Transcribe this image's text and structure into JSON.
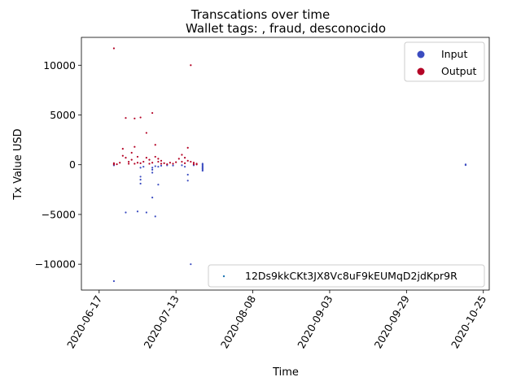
{
  "chart_data": {
    "type": "scatter",
    "title": "Transcations over time",
    "subtitle": "Wallet tags: , fraud, desconocido",
    "xlabel": "Time",
    "ylabel": "Tx Value USD",
    "x_range": [
      "2020-06-11",
      "2020-10-27"
    ],
    "ylim": [
      -12600,
      12800
    ],
    "x_ticks": [
      "2020-06-17",
      "2020-07-13",
      "2020-08-08",
      "2020-09-03",
      "2020-09-29",
      "2020-10-25"
    ],
    "y_ticks": [
      -10000,
      -5000,
      0,
      5000,
      10000
    ],
    "grid": false,
    "legends": [
      {
        "placement": "top-right",
        "entries": [
          {
            "label": "Input",
            "color": "#3b4cc0",
            "marker": "circle"
          },
          {
            "label": "Output",
            "color": "#b40426",
            "marker": "circle"
          }
        ]
      },
      {
        "placement": "lower-right",
        "entries": [
          {
            "label": "12Ds9kkCKt3JX8Vc8uF9kEUMqD2jdKpr9R",
            "color": "#1f77b4",
            "marker": "dot"
          }
        ]
      }
    ],
    "series": [
      {
        "name": "Input",
        "color": "#3b4cc0",
        "points": [
          [
            "2020-06-22",
            -11700
          ],
          [
            "2020-06-22",
            -60
          ],
          [
            "2020-06-22",
            -20
          ],
          [
            "2020-06-26",
            -4800
          ],
          [
            "2020-06-30",
            -4700
          ],
          [
            "2020-07-03",
            -4800
          ],
          [
            "2020-07-01",
            -1200
          ],
          [
            "2020-07-01",
            -1500
          ],
          [
            "2020-07-01",
            -1900
          ],
          [
            "2020-07-01",
            -300
          ],
          [
            "2020-07-02",
            -200
          ],
          [
            "2020-07-05",
            -3300
          ],
          [
            "2020-07-05",
            -800
          ],
          [
            "2020-07-05",
            -500
          ],
          [
            "2020-07-05",
            -300
          ],
          [
            "2020-07-06",
            -5200
          ],
          [
            "2020-07-06",
            -150
          ],
          [
            "2020-07-07",
            -2000
          ],
          [
            "2020-07-07",
            -200
          ],
          [
            "2020-07-08",
            -100
          ],
          [
            "2020-07-10",
            -60
          ],
          [
            "2020-07-12",
            -80
          ],
          [
            "2020-07-15",
            -50
          ],
          [
            "2020-07-16",
            -200
          ],
          [
            "2020-07-17",
            -1000
          ],
          [
            "2020-07-17",
            -1600
          ],
          [
            "2020-07-18",
            -10000
          ],
          [
            "2020-07-19",
            -50
          ],
          [
            "2020-07-22",
            0
          ],
          [
            "2020-07-22",
            -100
          ],
          [
            "2020-07-22",
            -200
          ],
          [
            "2020-07-22",
            -300
          ],
          [
            "2020-07-22",
            -400
          ],
          [
            "2020-07-22",
            -500
          ],
          [
            "2020-07-22",
            -600
          ],
          [
            "2020-07-22",
            100
          ],
          [
            "2020-10-19",
            0
          ],
          [
            "2020-10-19",
            -30
          ],
          [
            "2020-10-19",
            30
          ]
        ]
      },
      {
        "name": "Output",
        "color": "#b40426",
        "points": [
          [
            "2020-06-22",
            11700
          ],
          [
            "2020-06-22",
            80
          ],
          [
            "2020-06-22",
            30
          ],
          [
            "2020-06-22",
            150
          ],
          [
            "2020-06-23",
            50
          ],
          [
            "2020-06-24",
            200
          ],
          [
            "2020-06-25",
            1600
          ],
          [
            "2020-06-25",
            900
          ],
          [
            "2020-06-26",
            700
          ],
          [
            "2020-06-26",
            4700
          ],
          [
            "2020-06-27",
            300
          ],
          [
            "2020-06-27",
            100
          ],
          [
            "2020-06-28",
            1200
          ],
          [
            "2020-06-28",
            500
          ],
          [
            "2020-06-29",
            1800
          ],
          [
            "2020-06-29",
            4650
          ],
          [
            "2020-06-29",
            100
          ],
          [
            "2020-06-30",
            800
          ],
          [
            "2020-06-30",
            200
          ],
          [
            "2020-07-01",
            4750
          ],
          [
            "2020-07-01",
            150
          ],
          [
            "2020-07-02",
            300
          ],
          [
            "2020-07-03",
            3200
          ],
          [
            "2020-07-03",
            700
          ],
          [
            "2020-07-04",
            100
          ],
          [
            "2020-07-04",
            500
          ],
          [
            "2020-07-05",
            5200
          ],
          [
            "2020-07-05",
            200
          ],
          [
            "2020-07-06",
            2000
          ],
          [
            "2020-07-06",
            800
          ],
          [
            "2020-07-07",
            300
          ],
          [
            "2020-07-07",
            600
          ],
          [
            "2020-07-08",
            100
          ],
          [
            "2020-07-08",
            400
          ],
          [
            "2020-07-09",
            150
          ],
          [
            "2020-07-10",
            50
          ],
          [
            "2020-07-11",
            200
          ],
          [
            "2020-07-12",
            100
          ],
          [
            "2020-07-13",
            250
          ],
          [
            "2020-07-14",
            600
          ],
          [
            "2020-07-15",
            1000
          ],
          [
            "2020-07-15",
            300
          ],
          [
            "2020-07-16",
            700
          ],
          [
            "2020-07-16",
            150
          ],
          [
            "2020-07-17",
            1700
          ],
          [
            "2020-07-17",
            400
          ],
          [
            "2020-07-18",
            10000
          ],
          [
            "2020-07-18",
            300
          ],
          [
            "2020-07-19",
            200
          ],
          [
            "2020-07-19",
            50
          ],
          [
            "2020-07-20",
            100
          ],
          [
            "2020-07-20",
            30
          ]
        ]
      }
    ]
  }
}
